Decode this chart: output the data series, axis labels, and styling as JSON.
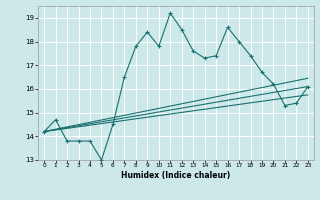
{
  "title": "",
  "xlabel": "Humidex (Indice chaleur)",
  "ylabel": "",
  "bg_color": "#cce8e8",
  "grid_color": "#ffffff",
  "line_color": "#1a7070",
  "xlim": [
    -0.5,
    23.5
  ],
  "ylim": [
    13,
    19.5
  ],
  "yticks": [
    13,
    14,
    15,
    16,
    17,
    18,
    19
  ],
  "xticks": [
    0,
    1,
    2,
    3,
    4,
    5,
    6,
    7,
    8,
    9,
    10,
    11,
    12,
    13,
    14,
    15,
    16,
    17,
    18,
    19,
    20,
    21,
    22,
    23
  ],
  "series_main": {
    "x": [
      0,
      1,
      2,
      3,
      4,
      5,
      6,
      7,
      8,
      9,
      10,
      11,
      12,
      13,
      14,
      15,
      16,
      17,
      18,
      19,
      20,
      21,
      22,
      23
    ],
    "y": [
      14.2,
      14.7,
      13.8,
      13.8,
      13.8,
      13.0,
      14.5,
      16.5,
      17.8,
      18.4,
      17.8,
      19.2,
      18.5,
      17.6,
      17.3,
      17.4,
      18.6,
      18.0,
      17.4,
      16.7,
      16.2,
      15.3,
      15.4,
      16.1
    ]
  },
  "series_linear1": {
    "x": [
      0,
      23
    ],
    "y": [
      14.2,
      16.1
    ]
  },
  "series_linear2": {
    "x": [
      0,
      23
    ],
    "y": [
      14.2,
      15.75
    ]
  },
  "series_linear3": {
    "x": [
      0,
      23
    ],
    "y": [
      14.2,
      16.45
    ]
  }
}
